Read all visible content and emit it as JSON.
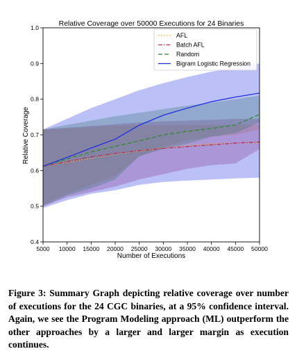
{
  "chart_data": {
    "type": "line",
    "title": "Relative Coverage over 50000 Executions for 24 Binaries",
    "xlabel": "Number of Executions",
    "ylabel": "Relative Coverage",
    "xlim": [
      5000,
      50000
    ],
    "ylim": [
      0.4,
      1.0
    ],
    "xticks": [
      5000,
      10000,
      15000,
      20000,
      25000,
      30000,
      35000,
      40000,
      45000,
      50000
    ],
    "yticks": [
      0.4,
      0.5,
      0.6,
      0.7,
      0.8,
      0.9,
      1.0
    ],
    "legend_position": "top-right",
    "grid": false,
    "x": [
      5000,
      10000,
      15000,
      20000,
      25000,
      30000,
      35000,
      40000,
      45000,
      50000
    ],
    "series": [
      {
        "name": "AFL",
        "color": "#e8a838",
        "dash": "dotted",
        "values": [
          0.612,
          0.623,
          0.634,
          0.645,
          0.655,
          0.663,
          0.669,
          0.674,
          0.677,
          0.679
        ],
        "ci_low": [
          0.505,
          0.535,
          0.56,
          0.585,
          0.64,
          0.665,
          0.685,
          0.695,
          0.7,
          0.715
        ],
        "ci_high": [
          0.715,
          0.718,
          0.722,
          0.726,
          0.728,
          0.728,
          0.728,
          0.728,
          0.728,
          0.728
        ]
      },
      {
        "name": "Batch AFL",
        "color": "#b03060",
        "dash": "dashdot",
        "values": [
          0.612,
          0.625,
          0.638,
          0.648,
          0.656,
          0.662,
          0.667,
          0.672,
          0.677,
          0.68
        ],
        "ci_low": [
          0.5,
          0.525,
          0.54,
          0.555,
          0.575,
          0.59,
          0.605,
          0.615,
          0.62,
          0.66
        ],
        "ci_high": [
          0.715,
          0.72,
          0.725,
          0.73,
          0.735,
          0.738,
          0.74,
          0.742,
          0.745,
          0.745
        ]
      },
      {
        "name": "Random",
        "color": "#2e8b2e",
        "dash": "dashed",
        "values": [
          0.612,
          0.633,
          0.652,
          0.668,
          0.683,
          0.7,
          0.71,
          0.718,
          0.728,
          0.757
        ],
        "ci_low": [
          0.5,
          0.53,
          0.55,
          0.575,
          0.64,
          0.66,
          0.675,
          0.695,
          0.705,
          0.735
        ],
        "ci_high": [
          0.715,
          0.728,
          0.74,
          0.752,
          0.762,
          0.772,
          0.782,
          0.79,
          0.8,
          0.81
        ]
      },
      {
        "name": "Bigram Logistic Regression",
        "color": "#1f2fe0",
        "dash": "solid",
        "values": [
          0.612,
          0.637,
          0.663,
          0.688,
          0.727,
          0.755,
          0.775,
          0.793,
          0.806,
          0.817
        ],
        "ci_low": [
          0.495,
          0.517,
          0.535,
          0.545,
          0.56,
          0.568,
          0.572,
          0.575,
          0.578,
          0.58
        ],
        "ci_high": [
          0.715,
          0.745,
          0.775,
          0.8,
          0.825,
          0.845,
          0.862,
          0.877,
          0.888,
          0.9
        ]
      }
    ]
  },
  "caption": {
    "label": "Figure 3:",
    "text": "Summary Graph depicting relative coverage over number of executions for the 24 CGC binaries, at a 95% confidence interval. Again, we see the Program Modeling approach (ML) outperform the other approaches by a larger and larger margin as execution continues."
  }
}
